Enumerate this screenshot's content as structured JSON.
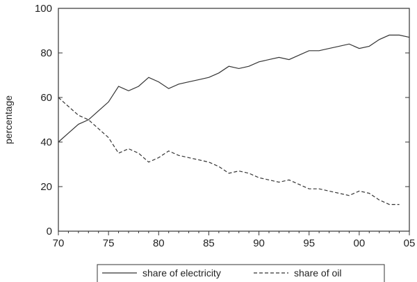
{
  "chart_data": {
    "type": "line",
    "title": "",
    "xlabel": "",
    "ylabel": "percentage",
    "xlim": [
      1970,
      2005
    ],
    "ylim": [
      0,
      100
    ],
    "x_ticks": [
      1970,
      1975,
      1980,
      1985,
      1990,
      1995,
      2000,
      2005
    ],
    "x_tick_labels": [
      "70",
      "75",
      "80",
      "85",
      "90",
      "95",
      "00",
      "05"
    ],
    "y_ticks": [
      0,
      20,
      40,
      60,
      80,
      100
    ],
    "y_tick_labels": [
      "0",
      "20",
      "40",
      "60",
      "80",
      "100"
    ],
    "grid": false,
    "legend_position": "bottom",
    "x": [
      1970,
      1971,
      1972,
      1973,
      1974,
      1975,
      1976,
      1977,
      1978,
      1979,
      1980,
      1981,
      1982,
      1983,
      1984,
      1985,
      1986,
      1987,
      1988,
      1989,
      1990,
      1991,
      1992,
      1993,
      1994,
      1995,
      1996,
      1997,
      1998,
      1999,
      2000,
      2001,
      2002,
      2003,
      2004,
      2005
    ],
    "series": [
      {
        "name": "share of electricity",
        "style": "solid",
        "color": "#333333",
        "values": [
          40,
          44,
          48,
          50,
          54,
          58,
          65,
          63,
          65,
          69,
          67,
          64,
          66,
          67,
          68,
          69,
          71,
          74,
          73,
          74,
          76,
          77,
          78,
          77,
          79,
          81,
          81,
          82,
          83,
          84,
          82,
          83,
          86,
          88,
          88,
          87
        ]
      },
      {
        "name": "share of oil",
        "style": "dashed",
        "color": "#333333",
        "values": [
          60,
          56,
          52,
          50,
          46,
          42,
          35,
          37,
          35,
          31,
          33,
          36,
          34,
          33,
          32,
          31,
          29,
          26,
          27,
          26,
          24,
          23,
          22,
          23,
          21,
          19,
          19,
          18,
          17,
          16,
          18,
          17,
          14,
          12,
          12,
          null
        ]
      }
    ]
  }
}
